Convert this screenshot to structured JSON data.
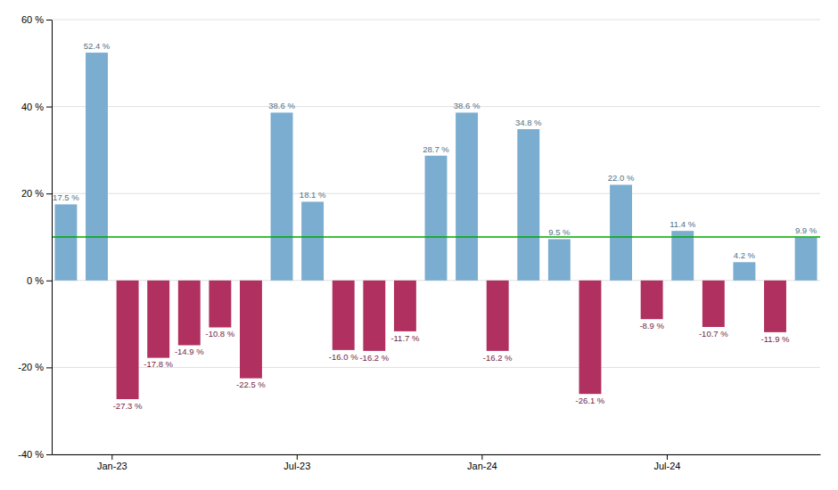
{
  "chart_data": {
    "type": "bar",
    "categories": [
      null,
      "Jan-23",
      null,
      null,
      null,
      null,
      null,
      "Jul-23",
      null,
      null,
      null,
      null,
      null,
      "Jan-24",
      null,
      null,
      null,
      null,
      null,
      "Jul-24",
      null,
      null,
      null,
      null,
      null
    ],
    "values": [
      17.5,
      52.4,
      -27.3,
      -17.8,
      -14.9,
      -10.8,
      -22.5,
      38.6,
      18.1,
      -16.0,
      -16.2,
      -11.7,
      28.7,
      38.6,
      -16.2,
      34.8,
      9.5,
      -26.1,
      22.0,
      -8.9,
      11.4,
      -10.7,
      4.2,
      -11.9,
      9.9
    ],
    "value_labels": [
      "17.5 %",
      "52.4 %",
      "-27.3 %",
      "-17.8 %",
      "-14.9 %",
      "-10.8 %",
      "-22.5 %",
      "38.6 %",
      "18.1 %",
      "-16.0 %",
      "-16.2 %",
      "-11.7 %",
      "28.7 %",
      "38.6 %",
      "-16.2 %",
      "34.8 %",
      "9.5 %",
      "-26.1 %",
      "22.0 %",
      "-8.9 %",
      "11.4 %",
      "-10.7 %",
      "4.2 %",
      "-11.9 %",
      "9.9 %"
    ],
    "colors": [
      "#7aadcf",
      "#7aadcf",
      "#b03060",
      "#b03060",
      "#b03060",
      "#b03060",
      "#b03060",
      "#7aadcf",
      "#7aadcf",
      "#b03060",
      "#b03060",
      "#b03060",
      "#7aadcf",
      "#7aadcf",
      "#b03060",
      "#7aadcf",
      "#7aadcf",
      "#b03060",
      "#7aadcf",
      "#b03060",
      "#7aadcf",
      "#b03060",
      "#7aadcf",
      "#b03060",
      "#7aadcf"
    ],
    "reference_line": {
      "y": 10.0,
      "color": "#00aa00"
    },
    "ylim": [
      -40,
      60
    ],
    "yticks": [
      {
        "value": -40,
        "label": "-40 %"
      },
      {
        "value": -20,
        "label": "-20 %"
      },
      {
        "value": 0,
        "label": "0 %"
      },
      {
        "value": 20,
        "label": "20 %"
      },
      {
        "value": 40,
        "label": "40 %"
      },
      {
        "value": 60,
        "label": "60 %"
      }
    ],
    "grid": true,
    "data_labels": true
  }
}
